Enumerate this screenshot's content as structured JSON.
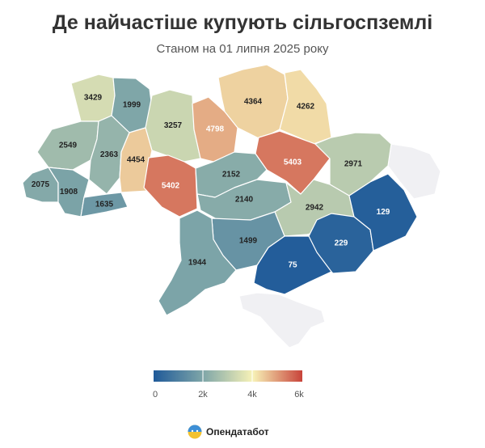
{
  "header": {
    "title": "Де найчастіше купують сільгоспземлі",
    "subtitle": "Станом на 01 липня 2025 року"
  },
  "legend": {
    "scale_min": 0,
    "scale_max": 6000,
    "tick_labels": [
      "0",
      "2k",
      "4k",
      "6k"
    ],
    "colors": [
      "#1f5a99",
      "#7fa6a8",
      "#f7f2b7",
      "#c8433a"
    ]
  },
  "map": {
    "no_data_color": "#f0f0f3",
    "regions": [
      {
        "id": "volyn",
        "value": 3429
      },
      {
        "id": "rivne",
        "value": 1999
      },
      {
        "id": "lviv",
        "value": 2549
      },
      {
        "id": "ternopil",
        "value": 2363
      },
      {
        "id": "zakarpattia",
        "value": 2075
      },
      {
        "id": "ivano-frankivsk",
        "value": 1908
      },
      {
        "id": "chernivtsi",
        "value": 1635
      },
      {
        "id": "zhytomyr",
        "value": 3257
      },
      {
        "id": "khmelnytskyi",
        "value": 4454
      },
      {
        "id": "vinnytsia",
        "value": 5402
      },
      {
        "id": "kyiv",
        "value": 4798
      },
      {
        "id": "chernihiv",
        "value": 4364
      },
      {
        "id": "sumy",
        "value": 4262
      },
      {
        "id": "poltava",
        "value": 5403
      },
      {
        "id": "kharkiv",
        "value": 2971
      },
      {
        "id": "cherkasy",
        "value": 2152
      },
      {
        "id": "kirovohrad",
        "value": 2140
      },
      {
        "id": "dnipropetrovsk",
        "value": 2942
      },
      {
        "id": "donetsk",
        "value": 229
      },
      {
        "id": "luhansk",
        "value": 129
      },
      {
        "id": "zaporizhzhia",
        "value": 75
      },
      {
        "id": "mykolaiv",
        "value": 1499
      },
      {
        "id": "odesa",
        "value": 1944
      }
    ]
  },
  "brand": {
    "name": "Опендатабот",
    "logo_icon": "opendatabot-logo-icon"
  }
}
